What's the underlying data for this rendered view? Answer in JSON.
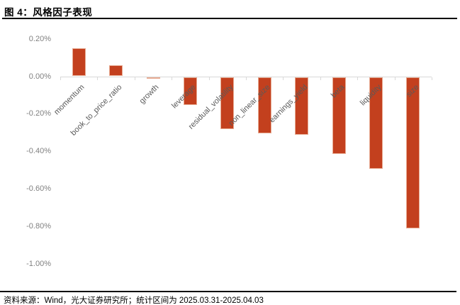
{
  "header": {
    "title": "图 4：风格因子表现"
  },
  "footer": {
    "source": "资料来源：Wind，光大证券研究所；统计区间为 2025.03.31-2025.04.03"
  },
  "colors": {
    "bar": "#c3401e",
    "bar_border": "#e7ab92",
    "axis": "#d9d9d9",
    "y_tick_label": "#808080",
    "category_label": "#595959",
    "title": "#000000",
    "divider": "#000000"
  },
  "chart_data": {
    "type": "bar",
    "title": "风格因子表现",
    "categories": [
      "momentum",
      "book_to_price_ratio",
      "growth",
      "leverage",
      "residual_volatility",
      "non_linear_size",
      "earnings_yield",
      "beta",
      "liquidity",
      "size"
    ],
    "values": [
      0.15,
      0.06,
      -0.01,
      -0.15,
      -0.28,
      -0.3,
      -0.31,
      -0.41,
      -0.49,
      -0.81
    ],
    "unit": "%",
    "xlabel": "",
    "ylabel": "",
    "y_ticks": [
      0.2,
      0.0,
      -0.2,
      -0.4,
      -0.6,
      -0.8,
      -1.0
    ],
    "ylim": [
      -1.1,
      0.3
    ],
    "grid": false,
    "legend_position": "none",
    "category_label_rotation_deg": 45
  }
}
